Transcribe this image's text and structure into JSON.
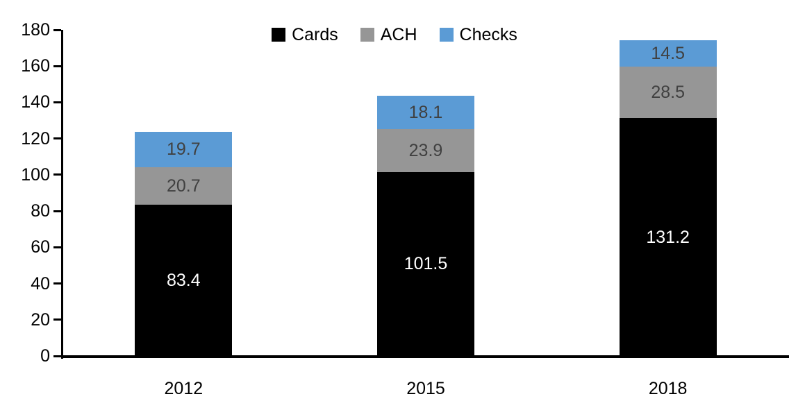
{
  "chart_data": {
    "type": "bar",
    "stacked": true,
    "title": "",
    "xlabel": "",
    "ylabel": "",
    "categories": [
      "2012",
      "2015",
      "2018"
    ],
    "series": [
      {
        "name": "Cards",
        "color": "#000000",
        "label_color": "#FFFFFF",
        "values": [
          83.4,
          101.5,
          131.2
        ]
      },
      {
        "name": "ACH",
        "color": "#969696",
        "label_color": "#404040",
        "values": [
          20.7,
          23.9,
          28.5
        ]
      },
      {
        "name": "Checks",
        "color": "#5B9BD5",
        "label_color": "#404040",
        "values": [
          19.7,
          18.1,
          14.5
        ]
      }
    ],
    "ylim": [
      0,
      180
    ],
    "ytick_step": 20,
    "ytick_labels": [
      "0",
      "20",
      "40",
      "60",
      "80",
      "100",
      "120",
      "140",
      "160",
      "180"
    ],
    "legend_position": "top-center",
    "grid": false,
    "data_labels": true,
    "axis_color": "#000000"
  }
}
